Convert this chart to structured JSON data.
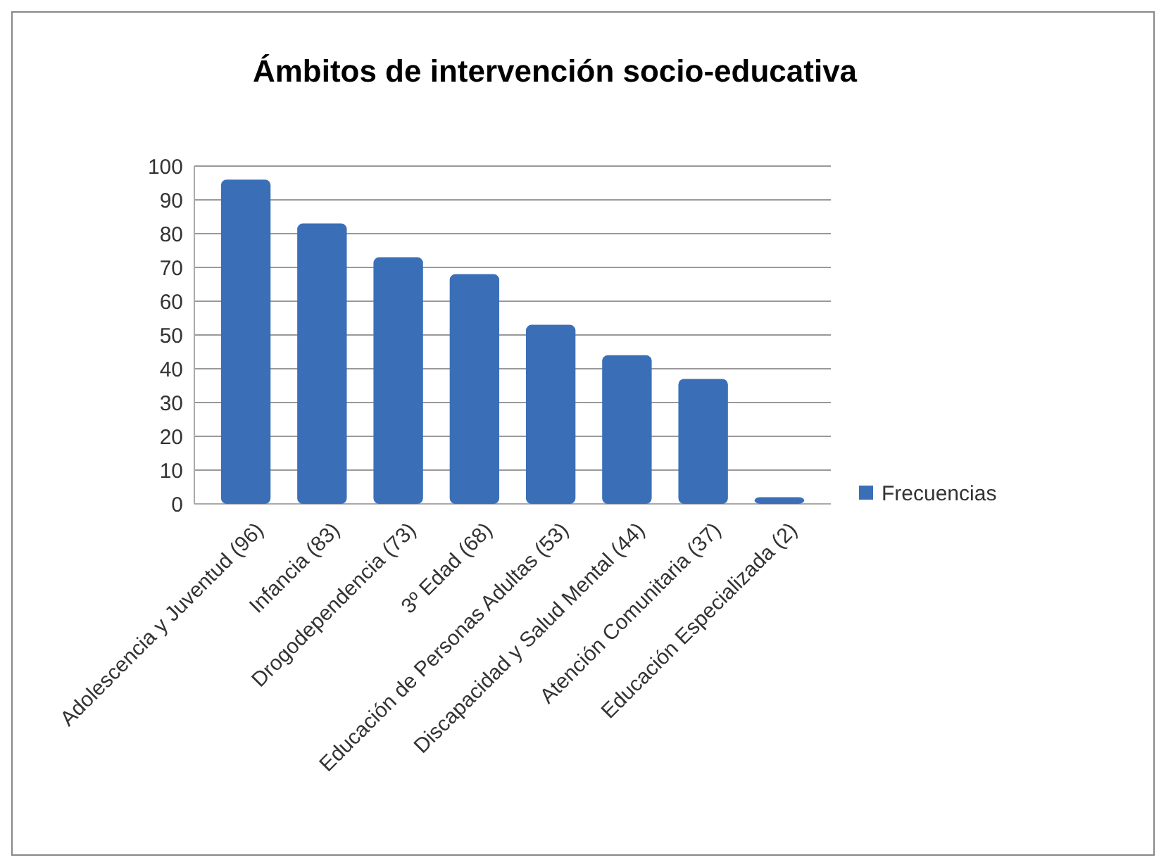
{
  "chart_data": {
    "type": "bar",
    "title": "Ámbitos de intervención socio-educativa",
    "categories": [
      "Adolescencia y Juventud (96)",
      "Infancia (83)",
      "Drogodependencia (73)",
      "3º Edad (68)",
      "Educación de Personas Adultas (53)",
      "Discapacidad y Salud Mental (44)",
      "Atención Comunitaria (37)",
      "Educación Especializada (2)"
    ],
    "series": [
      {
        "name": "Frecuencias",
        "color": "#3a6fb8",
        "values": [
          96,
          83,
          73,
          68,
          53,
          44,
          37,
          2
        ]
      }
    ],
    "ylim": [
      0,
      100
    ],
    "yticks": [
      0,
      10,
      20,
      30,
      40,
      50,
      60,
      70,
      80,
      90,
      100
    ],
    "grid": "y",
    "legend": "right"
  }
}
